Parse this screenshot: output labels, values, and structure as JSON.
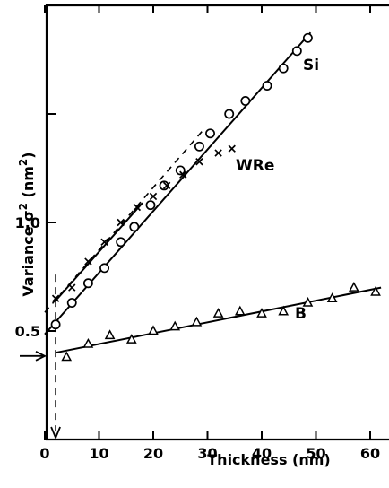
{
  "chart_data": {
    "type": "scatter",
    "xlabel": "Thickness  (nm)",
    "ylabel": "Variance",
    "ylabel_symbol": "σ",
    "ylabel_exp": "2",
    "ylabel_unit_prefix": "(nm",
    "ylabel_unit_exp": "2",
    "ylabel_unit_suffix": ")",
    "xlim": [
      0,
      62
    ],
    "ylim": [
      0,
      1.95
    ],
    "x_ticks": [
      0,
      10,
      20,
      30,
      40,
      50,
      60
    ],
    "x_tick_labels": [
      "0",
      "10",
      "20",
      "30",
      "40",
      "50",
      "60"
    ],
    "y_ticks": [
      0.5,
      1.0,
      1.5
    ],
    "y_tick_labels": [
      {
        "value": 0.5,
        "text": "0.5"
      },
      {
        "value": 1.0,
        "text": "1.0"
      }
    ],
    "grid": false,
    "series": [
      {
        "name": "Si",
        "marker": "circle",
        "points": [
          [
            2,
            0.53
          ],
          [
            5,
            0.63
          ],
          [
            8,
            0.72
          ],
          [
            11,
            0.79
          ],
          [
            14,
            0.91
          ],
          [
            16.5,
            0.98
          ],
          [
            19.5,
            1.08
          ],
          [
            22,
            1.17
          ],
          [
            25,
            1.24
          ],
          [
            28.5,
            1.35
          ],
          [
            30.5,
            1.41
          ],
          [
            34,
            1.5
          ],
          [
            37,
            1.56
          ],
          [
            41,
            1.63
          ],
          [
            44,
            1.71
          ],
          [
            46.5,
            1.79
          ],
          [
            48.5,
            1.85
          ]
        ],
        "fit": [
          [
            0,
            0.485
          ],
          [
            49,
            1.875
          ]
        ],
        "dashed_extension": [
          [
            0,
            0.485
          ],
          [
            2,
            0.541
          ]
        ]
      },
      {
        "name": "WRe",
        "marker": "x",
        "points": [
          [
            2,
            0.65
          ],
          [
            5,
            0.7
          ],
          [
            8,
            0.82
          ],
          [
            11,
            0.91
          ],
          [
            14,
            1.0
          ],
          [
            17,
            1.07
          ],
          [
            20,
            1.12
          ],
          [
            22.5,
            1.17
          ],
          [
            25.5,
            1.22
          ],
          [
            28.5,
            1.28
          ],
          [
            32,
            1.32
          ],
          [
            34.5,
            1.34
          ]
        ],
        "fit": [
          [
            2,
            0.64
          ],
          [
            18,
            1.09
          ]
        ],
        "dashed_extension": [
          [
            0,
            0.586
          ],
          [
            29,
            1.42
          ]
        ]
      },
      {
        "name": "B",
        "marker": "triangle",
        "points": [
          [
            4,
            0.38
          ],
          [
            8,
            0.44
          ],
          [
            12,
            0.48
          ],
          [
            16,
            0.46
          ],
          [
            20,
            0.5
          ],
          [
            24,
            0.52
          ],
          [
            28,
            0.54
          ],
          [
            32,
            0.58
          ],
          [
            36,
            0.59
          ],
          [
            40,
            0.58
          ],
          [
            44,
            0.59
          ],
          [
            48.5,
            0.63
          ],
          [
            53,
            0.65
          ],
          [
            57,
            0.7
          ],
          [
            61,
            0.68
          ]
        ],
        "fit": [
          [
            2,
            0.4
          ],
          [
            62,
            0.7
          ]
        ]
      }
    ],
    "annotations": {
      "vertical_dashed_x": 2,
      "left_arrow_y": 0.385
    }
  }
}
